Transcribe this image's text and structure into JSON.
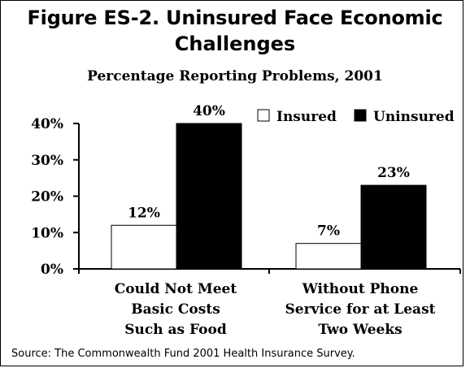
{
  "header": {
    "title_line1": "Figure ES-2. Uninsured Face Economic",
    "title_line2": "Challenges",
    "subtitle": "Percentage Reporting Problems, 2001"
  },
  "footer": {
    "source": "Source: The Commonwealth Fund 2001 Health Insurance Survey."
  },
  "colors": {
    "insured": "#ffffff",
    "uninsured": "#000000",
    "axis": "#000000"
  },
  "chart_data": {
    "type": "bar",
    "title": "Figure ES-2. Uninsured Face Economic Challenges",
    "subtitle": "Percentage Reporting Problems, 2001",
    "categories": [
      [
        "Could Not Meet",
        "Basic Costs",
        "Such as Food"
      ],
      [
        "Without Phone",
        "Service for at Least",
        "Two Weeks"
      ]
    ],
    "series": [
      {
        "name": "Insured",
        "values": [
          12,
          7
        ],
        "labels": [
          "12%",
          "7%"
        ]
      },
      {
        "name": "Uninsured",
        "values": [
          40,
          23
        ],
        "labels": [
          "40%",
          "23%"
        ]
      }
    ],
    "yticks": [
      {
        "value": 0,
        "label": "0%"
      },
      {
        "value": 10,
        "label": "10%"
      },
      {
        "value": 20,
        "label": "20%"
      },
      {
        "value": 30,
        "label": "30%"
      },
      {
        "value": 40,
        "label": "40%"
      }
    ],
    "ylim": [
      0,
      40
    ],
    "grid": false,
    "legend_position": "top-right"
  }
}
